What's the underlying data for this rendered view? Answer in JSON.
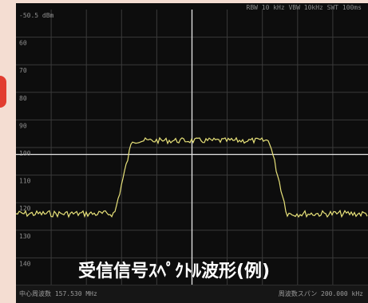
{
  "screen": {
    "top_readout": "RBW 10 kHz  VBW 10kHz  SWT 100ms",
    "ref_level_label": "-50.5 dBm",
    "y_tick_labels": [
      "60",
      "70",
      "80",
      "90",
      "100",
      "110",
      "120",
      "130",
      "140"
    ],
    "caption": "受信信号ｽﾍﾟｸﾄﾙ波形(例)",
    "footer_left": "中心周波数 157.530 MHz",
    "footer_right": "周波数スパン 200.000 kHz"
  },
  "colors": {
    "trace": "#e8e27a",
    "grid": "#3a3a3a",
    "crosshair": "#e6e6e6",
    "frame_bg": "#f4ddd2",
    "side_mark": "#e23c2f"
  }
}
